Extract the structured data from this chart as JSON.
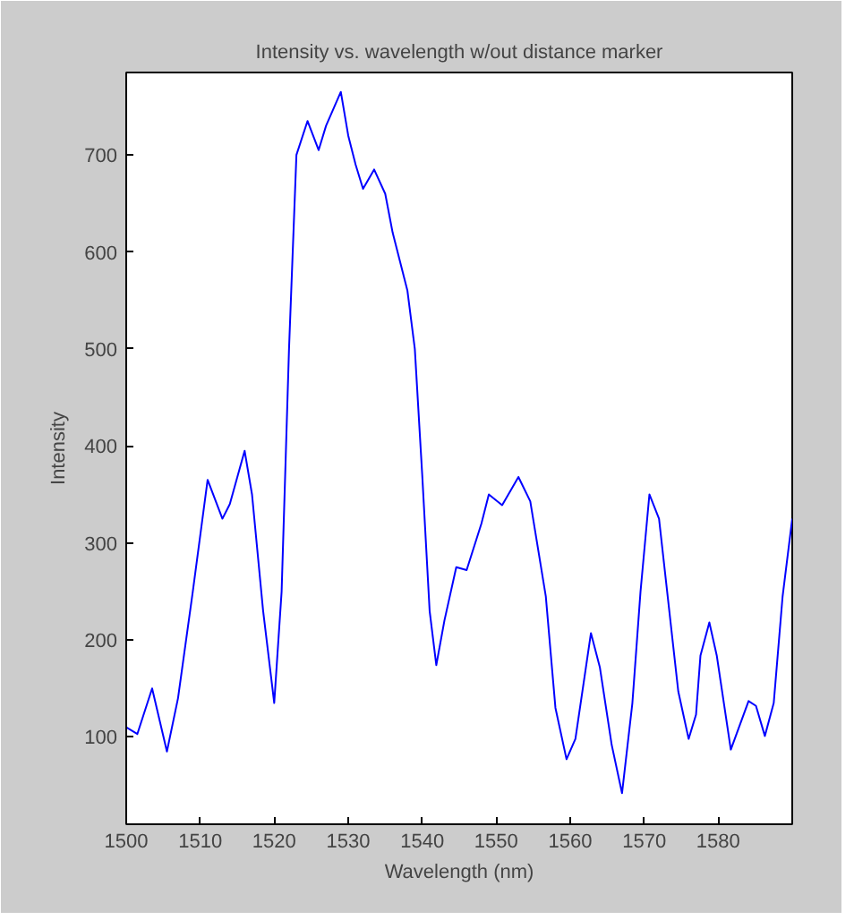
{
  "chart_data": {
    "type": "line",
    "title": "Intensity vs. wavelength w/out distance marker",
    "xlabel": "Wavelength (nm)",
    "ylabel": "Intensity",
    "xlim": [
      1500,
      1590
    ],
    "xticks": [
      1500,
      1510,
      1520,
      1530,
      1540,
      1550,
      1560,
      1570,
      1580
    ],
    "ylim": [
      10,
      785
    ],
    "yticks": [
      100,
      200,
      300,
      400,
      500,
      600,
      700
    ],
    "grid": false,
    "marker": "none",
    "line_style": "solid",
    "series": [
      {
        "color": "#0000ff",
        "x": [
          1500,
          1501.5,
          1503.5,
          1505.5,
          1507,
          1509,
          1511,
          1513,
          1514,
          1516,
          1517,
          1518.5,
          1520,
          1521,
          1522,
          1523,
          1524.5,
          1526,
          1527,
          1529,
          1530,
          1531,
          1532,
          1533.5,
          1535,
          1536,
          1537,
          1538,
          1539,
          1540,
          1541,
          1541.9,
          1543,
          1544.6,
          1546,
          1548,
          1549,
          1550.8,
          1553,
          1554.6,
          1556.7,
          1558,
          1559.5,
          1560.7,
          1562.8,
          1564,
          1565.6,
          1567,
          1568.4,
          1569.5,
          1570.7,
          1572,
          1574.6,
          1576,
          1577,
          1577.6,
          1578.8,
          1579.8,
          1581.7,
          1584.1,
          1585.1,
          1586.3,
          1587.5,
          1588.7,
          1590
        ],
        "values": [
          110,
          103,
          150,
          85,
          140,
          250,
          365,
          325,
          340,
          395,
          350,
          230,
          135,
          250,
          500,
          700,
          735,
          705,
          730,
          765,
          720,
          690,
          665,
          685,
          660,
          620,
          590,
          560,
          500,
          370,
          230,
          174,
          220,
          275,
          272,
          320,
          350,
          339,
          368,
          343,
          245,
          130,
          77,
          98,
          207,
          172,
          92,
          42,
          135,
          250,
          350,
          325,
          147,
          98,
          123,
          184,
          218,
          184,
          87,
          137,
          132,
          101,
          135,
          245,
          325
        ]
      }
    ]
  }
}
